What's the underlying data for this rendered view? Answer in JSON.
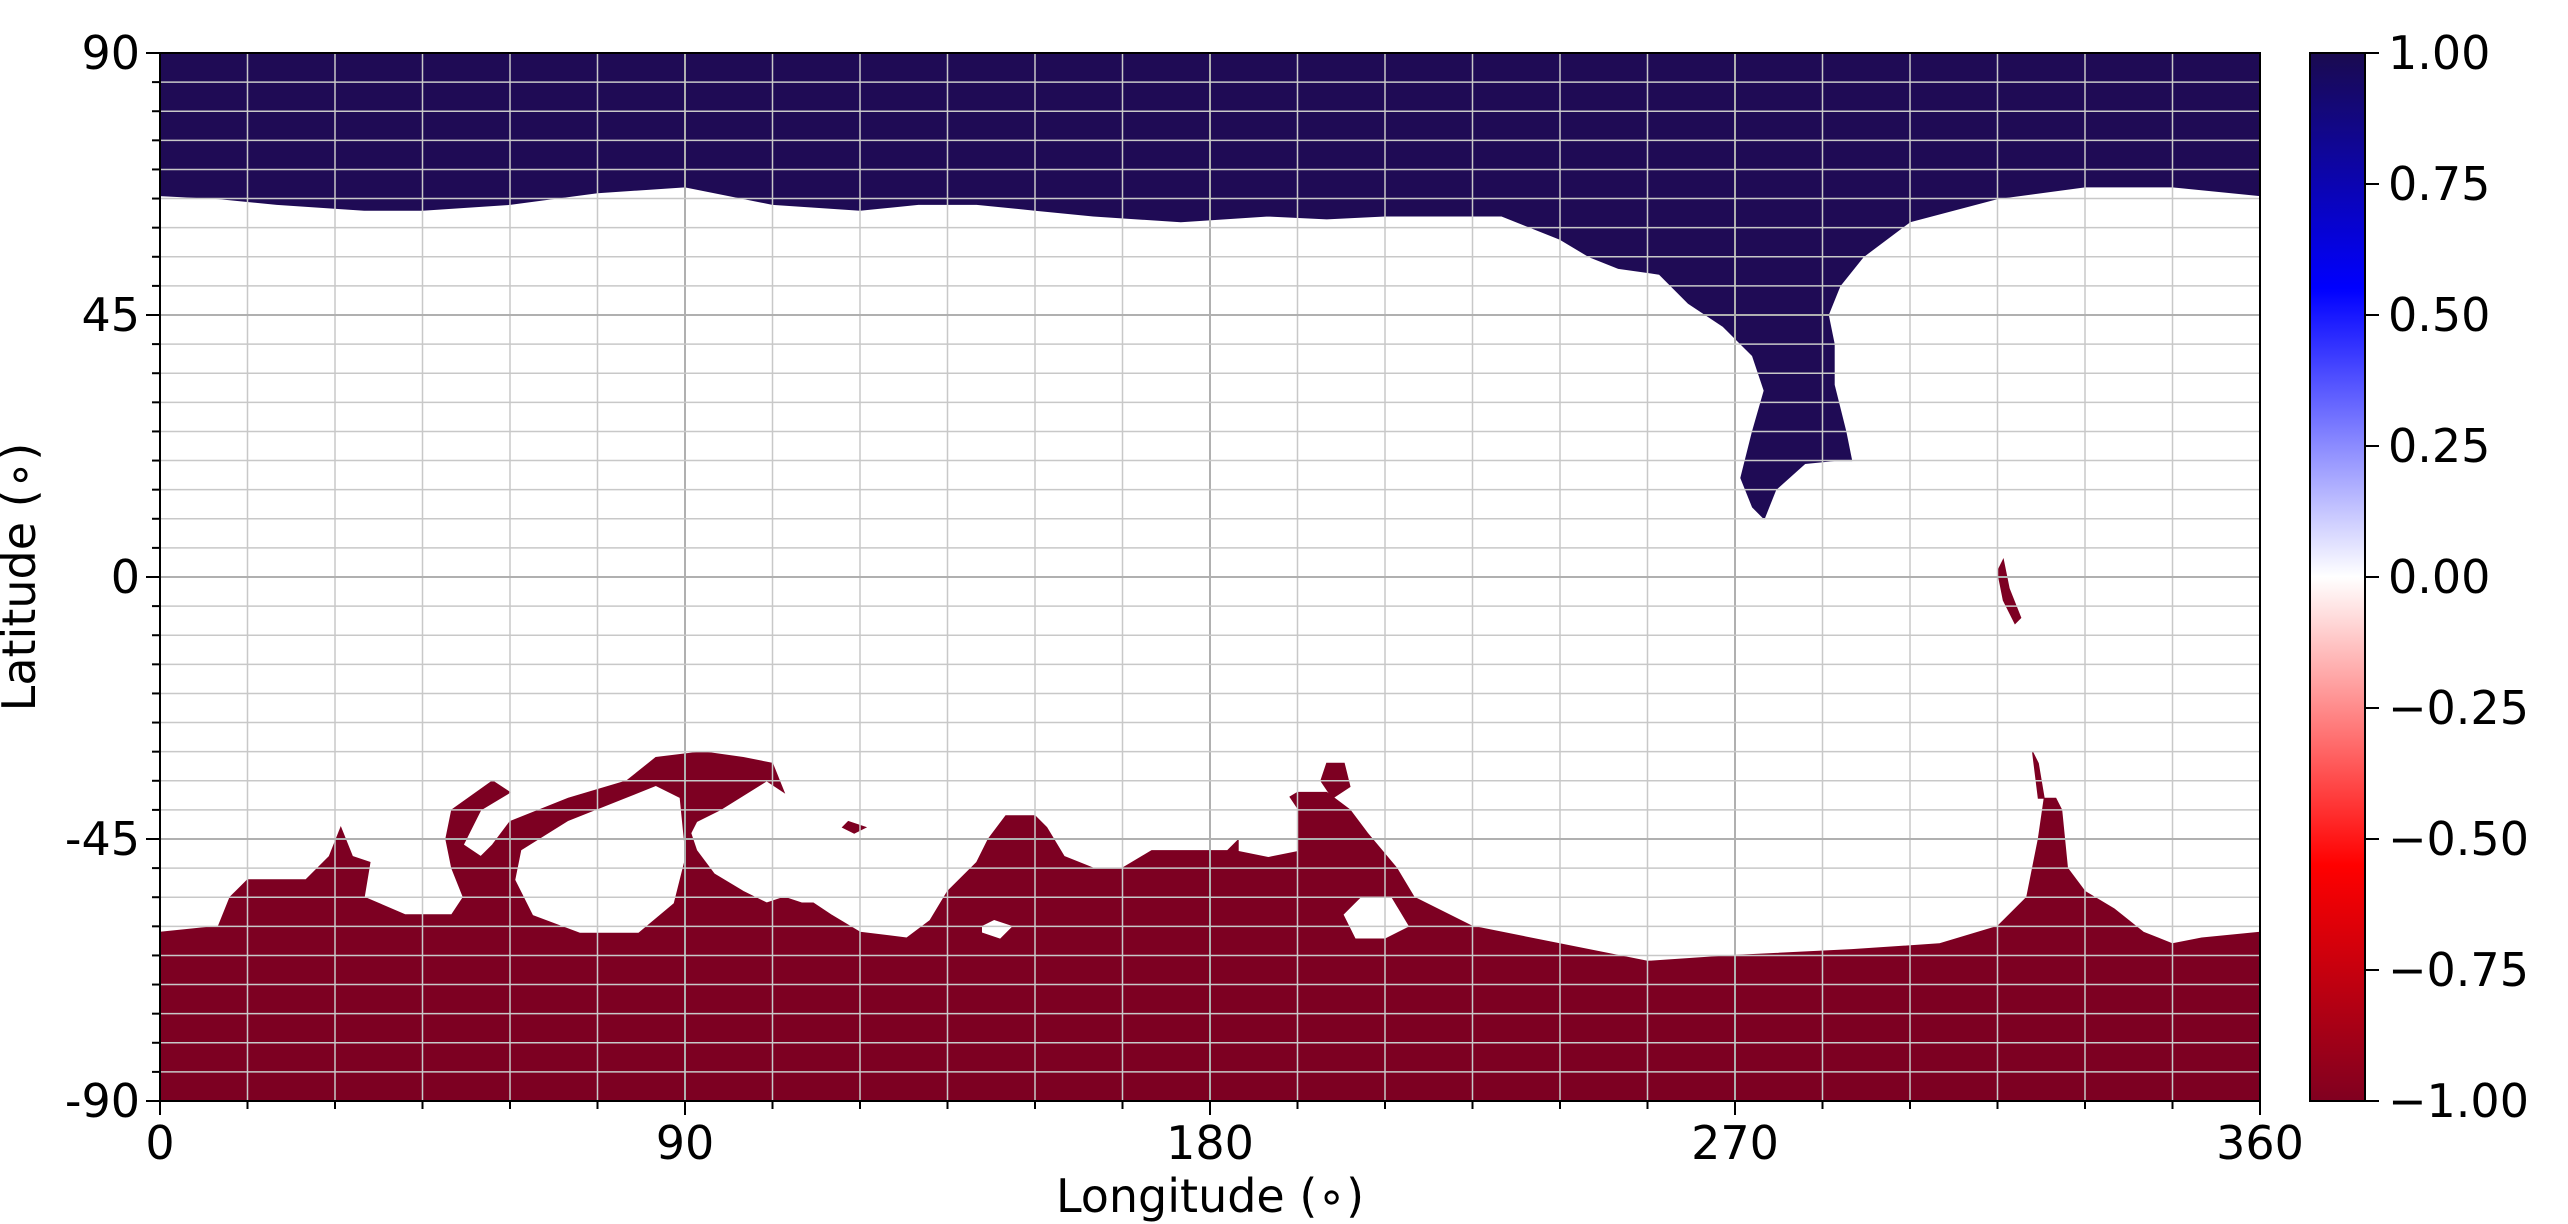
{
  "chart_data": {
    "type": "heatmap",
    "title": "",
    "xlabel": "Longitude ($^\\circ$)",
    "ylabel": "Latitude ($^\\circ$)",
    "xlabel_text": "Longitude (∘)",
    "ylabel_text": "Latitude (∘)",
    "xlim": [
      0,
      360
    ],
    "ylim": [
      -90,
      90
    ],
    "x_ticks": [
      0,
      90,
      180,
      270,
      360
    ],
    "x_tick_labels": [
      "0",
      "90",
      "180",
      "270",
      "360"
    ],
    "y_ticks": [
      90,
      45,
      0,
      -45,
      -90
    ],
    "y_tick_labels": [
      "90",
      "45",
      "0",
      "-45",
      "-90"
    ],
    "x_minor_step": 15,
    "y_minor_step": 5,
    "grid": true,
    "colormap": "seismic (reversed)",
    "colorbar": {
      "range": [
        -1,
        1
      ],
      "ticks": [
        1.0,
        0.75,
        0.5,
        0.25,
        0.0,
        -0.25,
        -0.5,
        -0.75,
        -1.0
      ],
      "tick_labels": [
        "1.00",
        "0.75",
        "0.50",
        "0.25",
        "0.00",
        "−0.25",
        "−0.50",
        "−0.75",
        "−1.00"
      ],
      "color_stops": [
        {
          "value": 1.0,
          "color": "#1a0a4f"
        },
        {
          "value": 0.55,
          "color": "#0000ff"
        },
        {
          "value": 0.0,
          "color": "#ffffff"
        },
        {
          "value": -0.55,
          "color": "#ff0000"
        },
        {
          "value": -1.0,
          "color": "#800020"
        }
      ]
    },
    "regions": [
      {
        "name": "northern-region",
        "value": 1.0,
        "color": "#1f0b55",
        "outline": [
          [
            0,
            90
          ],
          [
            360,
            90
          ],
          [
            360,
            65.5
          ],
          [
            345,
            67
          ],
          [
            330,
            67
          ],
          [
            315,
            65
          ],
          [
            300,
            61
          ],
          [
            292,
            55
          ],
          [
            288,
            50
          ],
          [
            286,
            45
          ],
          [
            287,
            40
          ],
          [
            287,
            33
          ],
          [
            289,
            25
          ],
          [
            290,
            20
          ],
          [
            287,
            20
          ],
          [
            282,
            19.5
          ],
          [
            277,
            15
          ],
          [
            275,
            10
          ],
          [
            273,
            12
          ],
          [
            271,
            17
          ],
          [
            273,
            25
          ],
          [
            275,
            32
          ],
          [
            273,
            38
          ],
          [
            268,
            43
          ],
          [
            262,
            47
          ],
          [
            257,
            52
          ],
          [
            250,
            53
          ],
          [
            245,
            55
          ],
          [
            240,
            58
          ],
          [
            230,
            62
          ],
          [
            220,
            62
          ],
          [
            210,
            62
          ],
          [
            200,
            61.5
          ],
          [
            190,
            62
          ],
          [
            175,
            61
          ],
          [
            160,
            62
          ],
          [
            150,
            63
          ],
          [
            140,
            64
          ],
          [
            130,
            64
          ],
          [
            120,
            63
          ],
          [
            105,
            64
          ],
          [
            90,
            67
          ],
          [
            75,
            66
          ],
          [
            60,
            64
          ],
          [
            45,
            63
          ],
          [
            35,
            63
          ],
          [
            20,
            64
          ],
          [
            10,
            65
          ],
          [
            0,
            65.5
          ]
        ]
      },
      {
        "name": "southern-region",
        "value": -1.0,
        "color": "#7d0022",
        "outline": [
          [
            0,
            -90
          ],
          [
            360,
            -90
          ],
          [
            360,
            -61
          ],
          [
            350,
            -62
          ],
          [
            345,
            -63
          ],
          [
            340,
            -61
          ],
          [
            335,
            -57
          ],
          [
            330,
            -54
          ],
          [
            327,
            -50
          ],
          [
            326,
            -40
          ],
          [
            325,
            -38
          ],
          [
            323,
            -38
          ],
          [
            322,
            -45
          ],
          [
            320,
            -55
          ],
          [
            315,
            -60
          ],
          [
            305,
            -63
          ],
          [
            290,
            -64
          ],
          [
            270,
            -65
          ],
          [
            255,
            -66
          ],
          [
            245,
            -64
          ],
          [
            225,
            -60
          ],
          [
            215,
            -55
          ],
          [
            212,
            -50
          ],
          [
            207,
            -44
          ],
          [
            204,
            -40
          ],
          [
            200,
            -37
          ],
          [
            195,
            -37
          ],
          [
            190,
            -40
          ],
          [
            183,
            -47
          ],
          [
            176,
            -47
          ],
          [
            170,
            -47
          ],
          [
            165,
            -50
          ],
          [
            160,
            -50
          ],
          [
            155,
            -48
          ],
          [
            152,
            -43
          ],
          [
            150,
            -41
          ],
          [
            145,
            -41
          ],
          [
            142,
            -45
          ],
          [
            140,
            -49
          ],
          [
            135,
            -54
          ],
          [
            132,
            -59
          ],
          [
            128,
            -62
          ],
          [
            120,
            -61
          ],
          [
            115,
            -58
          ],
          [
            112,
            -56
          ],
          [
            110,
            -56
          ],
          [
            107,
            -55
          ],
          [
            104,
            -56
          ],
          [
            100,
            -54
          ],
          [
            95,
            -51
          ],
          [
            92,
            -47
          ],
          [
            91,
            -44
          ],
          [
            92,
            -42
          ],
          [
            96,
            -40
          ],
          [
            104,
            -35
          ],
          [
            107,
            -37
          ],
          [
            105,
            -32
          ],
          [
            100,
            -31
          ],
          [
            93,
            -30
          ],
          [
            85,
            -31
          ],
          [
            80,
            -35
          ],
          [
            70,
            -38
          ],
          [
            60,
            -42
          ],
          [
            57,
            -46
          ],
          [
            55,
            -48
          ],
          [
            52,
            -46
          ],
          [
            55,
            -40
          ],
          [
            60,
            -37
          ],
          [
            57,
            -35
          ],
          [
            50,
            -40
          ],
          [
            49,
            -45
          ],
          [
            50,
            -50
          ],
          [
            52,
            -55
          ],
          [
            50,
            -58
          ],
          [
            42,
            -58
          ],
          [
            35,
            -55
          ],
          [
            36,
            -49
          ],
          [
            33,
            -48
          ],
          [
            31,
            -43
          ],
          [
            29,
            -48
          ],
          [
            25,
            -52
          ],
          [
            15,
            -52
          ],
          [
            12,
            -55
          ],
          [
            10,
            -60
          ],
          [
            0,
            -61
          ]
        ]
      },
      {
        "name": "southern-inner-hole-1",
        "value": 0.0,
        "color": "#ffffff",
        "outline": [
          [
            62,
            -47
          ],
          [
            70,
            -42
          ],
          [
            80,
            -38
          ],
          [
            85,
            -36
          ],
          [
            89,
            -38
          ],
          [
            90,
            -48
          ],
          [
            88,
            -56
          ],
          [
            82,
            -61
          ],
          [
            72,
            -61
          ],
          [
            64,
            -58
          ],
          [
            61,
            -52
          ]
        ]
      },
      {
        "name": "southern-inner-hole-2",
        "value": 0.0,
        "color": "#ffffff",
        "outline": [
          [
            185,
            -47
          ],
          [
            185,
            -40
          ],
          [
            188,
            -37
          ],
          [
            193,
            -37
          ],
          [
            195,
            -40
          ],
          [
            195,
            -47
          ],
          [
            190,
            -48
          ]
        ]
      },
      {
        "name": "southern-inner-hole-3",
        "value": 0.0,
        "color": "#ffffff",
        "outline": [
          [
            203,
            -58
          ],
          [
            206,
            -55
          ],
          [
            211,
            -55
          ],
          [
            214,
            -60
          ],
          [
            210,
            -62
          ],
          [
            205,
            -62
          ]
        ]
      },
      {
        "name": "southern-inner-hole-4",
        "value": 0.0,
        "color": "#ffffff",
        "outline": [
          [
            141,
            -60
          ],
          [
            143,
            -59
          ],
          [
            146,
            -60
          ],
          [
            144,
            -62
          ],
          [
            141,
            -61
          ]
        ]
      },
      {
        "name": "southern-islet-1",
        "value": -1.0,
        "color": "#7d0022",
        "outline": [
          [
            200,
            -32
          ],
          [
            203,
            -32
          ],
          [
            204,
            -36
          ],
          [
            201,
            -38
          ],
          [
            199,
            -35
          ]
        ]
      },
      {
        "name": "southern-islet-2",
        "value": -1.0,
        "color": "#7d0022",
        "outline": [
          [
            118,
            -42
          ],
          [
            121,
            -43
          ],
          [
            119,
            -44
          ],
          [
            117,
            -43
          ]
        ]
      },
      {
        "name": "equatorial-islet",
        "value": -1.0,
        "color": "#7d0022",
        "outline": [
          [
            316,
            3
          ],
          [
            317,
            -2
          ],
          [
            319,
            -7
          ],
          [
            318,
            -8
          ],
          [
            316,
            -4
          ],
          [
            315,
            1
          ]
        ]
      },
      {
        "name": "southern-streak",
        "value": -1.0,
        "color": "#7d0022",
        "outline": [
          [
            321,
            -30
          ],
          [
            322,
            -32
          ],
          [
            323,
            -38
          ],
          [
            322,
            -38
          ]
        ]
      }
    ]
  }
}
